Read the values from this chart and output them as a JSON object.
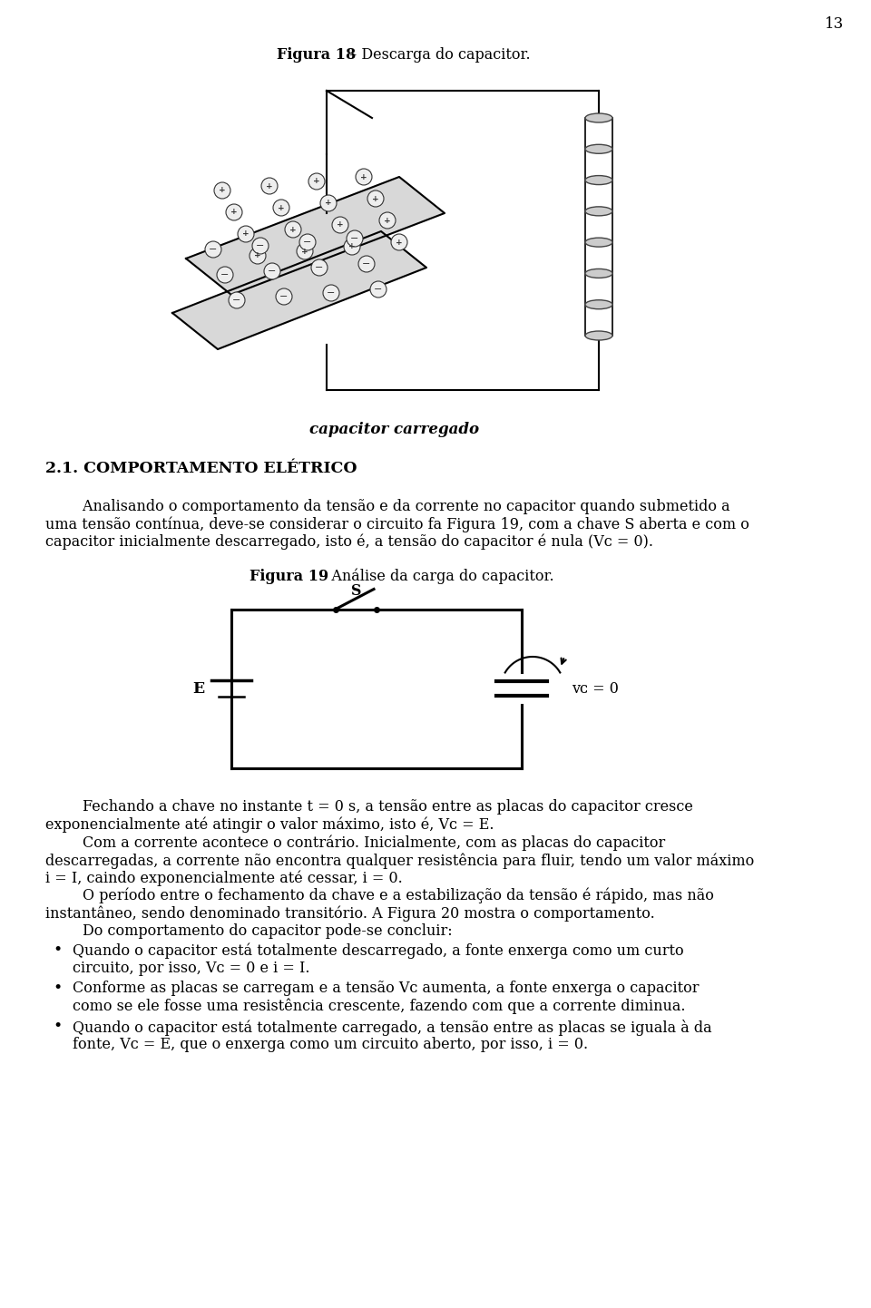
{
  "page_number": "13",
  "bg": "#ffffff",
  "fg": "#000000",
  "fig18_bold": "Figura 18",
  "fig18_rest": " – Descarga do capacitor.",
  "fig19_bold": "Figura 19",
  "fig19_rest": " – Análise da carga do capacitor.",
  "section": "2.1. COMPORTAMENTO ELÉTRICO",
  "p1_indent": "        Analisando o comportamento da tensão e da corrente no capacitor quando submetido a",
  "p1_l2": "uma tensão contínua, deve-se considerar o circuito fa Figura 19, com a chave S aberta e com o",
  "p1_l3": "capacitor inicialmente descarregado, isto é, a tensão do capacitor é nula (Vᴄ = 0).",
  "p2_l1": "        Fechando a chave no instante t = 0 s, a tensão entre as placas do capacitor cresce",
  "p2_l2": "exponencialmente até atingir o valor máximo, isto é, Vᴄ = E.",
  "p3_l1": "        Com a corrente acontece o contrário. Inicialmente, com as placas do capacitor",
  "p3_l2": "descarregadas, a corrente não encontra qualquer resistência para fluir, tendo um valor máximo",
  "p3_l3": "i = I, caindo exponencialmente até cessar, i = 0.",
  "p4_l1": "        O período entre o fechamento da chave e a estabilização da tensão é rápido, mas não",
  "p4_l2": "instantâneo, sendo denominado transitório. A Figura 20 mostra o comportamento.",
  "p5": "        Do comportamento do capacitor pode-se concluir:",
  "b1_l1": "Quando o capacitor está totalmente descarregado, a fonte enxerga como um curto",
  "b1_l2": "circuito, por isso, Vᴄ = 0 e i = I.",
  "b2_l1": "Conforme as placas se carregam e a tensão Vᴄ aumenta, a fonte enxerga o capacitor",
  "b2_l2": "como se ele fosse uma resistência crescente, fazendo com que a corrente diminua.",
  "b3_l1": "Quando o capacitor está totalmente carregado, a tensão entre as placas se iguala à da",
  "b3_l2": "fonte, Vᴄ = E, que o enxerga como um circuito aberto, por isso, i = 0.",
  "cap_label": "capacitor carregado",
  "lbl_E": "E",
  "lbl_S": "S",
  "lbl_vc": "vᴄ = 0"
}
